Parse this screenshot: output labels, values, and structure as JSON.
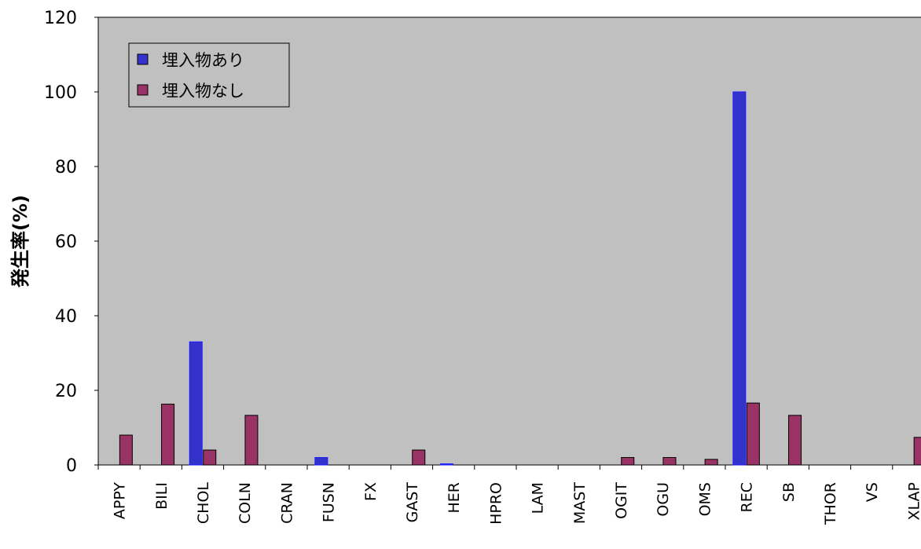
{
  "chart_data": {
    "type": "bar",
    "ylabel": "発生率(%)",
    "xlabel": "",
    "ylim": [
      0,
      120
    ],
    "yticks": [
      0,
      20,
      40,
      60,
      80,
      100,
      120
    ],
    "grid": false,
    "legend_position": "top-left",
    "background": "#c0c0c0",
    "categories": [
      "APPY",
      "BILI",
      "CHOL",
      "COLN",
      "CRAN",
      "FUSN",
      "FX",
      "GAST",
      "HER",
      "HPRO",
      "LAM",
      "MAST",
      "OGIT",
      "OGU",
      "OMS",
      "REC",
      "SB",
      "THOR",
      "VS",
      "XLAP"
    ],
    "series": [
      {
        "name": "埋入物あり",
        "color": "#3333cc",
        "values": [
          0,
          0,
          33,
          0,
          0,
          2,
          0,
          0,
          0.3,
          0,
          0,
          0,
          0,
          0,
          0,
          100,
          0,
          0,
          0,
          0
        ]
      },
      {
        "name": "埋入物なし",
        "color": "#993366",
        "values": [
          8,
          16.3,
          4,
          13.3,
          0,
          0,
          0,
          4,
          0,
          0,
          0,
          0,
          2,
          2,
          1.5,
          16.6,
          13.3,
          0,
          0,
          7.4
        ]
      }
    ]
  }
}
